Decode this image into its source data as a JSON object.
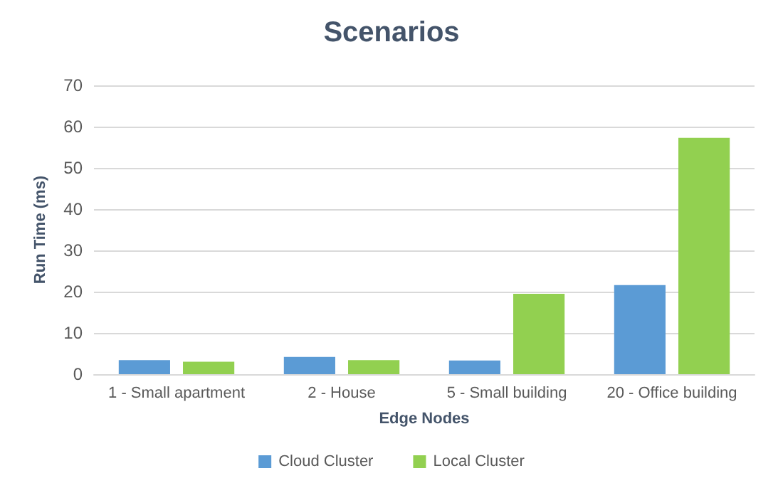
{
  "chart_data": {
    "type": "bar",
    "title": "Scenarios",
    "xlabel": "Edge Nodes",
    "ylabel": "Run Time (ms)",
    "categories": [
      "1 - Small apartment",
      "2 - House",
      "5 - Small building",
      "20 - Office building"
    ],
    "series": [
      {
        "name": "Cloud Cluster",
        "color": "#5b9bd5",
        "values": [
          3.4,
          4.2,
          3.3,
          21.6
        ]
      },
      {
        "name": "Local Cluster",
        "color": "#92d050",
        "values": [
          3.0,
          3.4,
          19.5,
          57.3
        ]
      }
    ],
    "ylim": [
      0,
      70
    ],
    "yticks": [
      0,
      10,
      20,
      30,
      40,
      50,
      60,
      70
    ],
    "grid": "y",
    "legend": "bottom"
  }
}
